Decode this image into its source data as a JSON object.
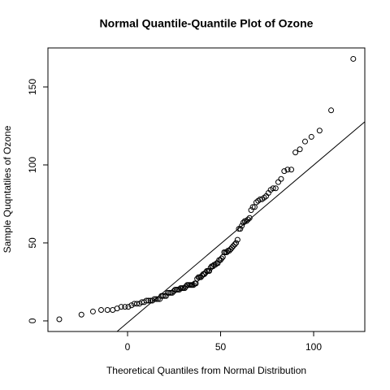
{
  "chart_data": {
    "type": "scatter",
    "title": "Normal Quantile-Quantile Plot of Ozone",
    "x_label": "Theoretical Quantiles from Normal Distribution",
    "y_label": "Sample Quqntatiles of Ozone",
    "x": [
      -36.7,
      -24.8,
      -18.6,
      -14.2,
      -10.8,
      -8.0,
      -5.6,
      -3.4,
      -1.4,
      0.4,
      2.1,
      3.6,
      5.0,
      6.4,
      7.7,
      8.9,
      10.1,
      11.2,
      12.3,
      13.3,
      14.4,
      15.4,
      16.3,
      17.3,
      18.2,
      19.0,
      19.9,
      20.7,
      21.6,
      22.4,
      23.2,
      24.0,
      24.8,
      25.5,
      26.3,
      27.0,
      27.8,
      28.5,
      29.2,
      29.9,
      30.7,
      31.3,
      32.0,
      32.7,
      33.4,
      34.1,
      34.7,
      35.4,
      36.1,
      36.7,
      37.4,
      38.1,
      38.7,
      39.4,
      40.0,
      40.7,
      41.3,
      42.0,
      42.6,
      43.3,
      43.9,
      44.6,
      45.2,
      45.9,
      46.5,
      47.2,
      47.9,
      48.5,
      49.2,
      49.9,
      50.5,
      51.2,
      51.9,
      52.6,
      53.3,
      53.9,
      54.7,
      55.4,
      56.1,
      56.8,
      57.6,
      58.3,
      59.1,
      59.8,
      60.6,
      61.4,
      62.2,
      63.0,
      63.9,
      64.7,
      65.6,
      66.4,
      67.3,
      68.3,
      69.2,
      70.2,
      71.3,
      72.3,
      73.4,
      74.5,
      75.7,
      76.9,
      78.2,
      79.6,
      81.0,
      82.5,
      84.2,
      86.0,
      88.0,
      90.2,
      92.6,
      95.4,
      98.8,
      103.2,
      109.4,
      121.3
    ],
    "values": [
      1,
      4,
      6,
      7,
      7,
      7,
      8,
      9,
      9,
      9,
      10,
      11,
      11,
      11,
      12,
      12,
      13,
      13,
      13,
      13,
      14,
      14,
      14,
      14,
      16,
      16,
      16,
      16,
      18,
      18,
      18,
      18,
      19,
      20,
      20,
      20,
      20,
      21,
      21,
      21,
      21,
      22,
      23,
      23,
      23,
      23,
      23,
      23,
      24,
      24,
      27,
      28,
      28,
      28,
      29,
      30,
      30,
      31,
      32,
      32,
      32,
      34,
      35,
      35,
      36,
      36,
      37,
      37,
      39,
      39,
      40,
      41,
      44,
      44,
      44,
      45,
      45,
      46,
      47,
      48,
      49,
      50,
      52,
      59,
      59,
      61,
      63,
      64,
      64,
      65,
      66,
      71,
      73,
      73,
      76,
      77,
      78,
      78,
      79,
      80,
      82,
      84,
      85,
      85,
      89,
      91,
      96,
      97,
      97,
      108,
      110,
      115,
      118,
      122,
      135,
      168
    ],
    "color": "#000000",
    "reference_line": {
      "intercept": -1.1,
      "slope": 1.01
    },
    "xlim": [
      -42.8,
      127.5
    ],
    "xticks": [
      0,
      50,
      100
    ],
    "ylim": [
      -6.8,
      175
    ],
    "yticks": [
      0,
      50,
      100,
      150
    ]
  }
}
